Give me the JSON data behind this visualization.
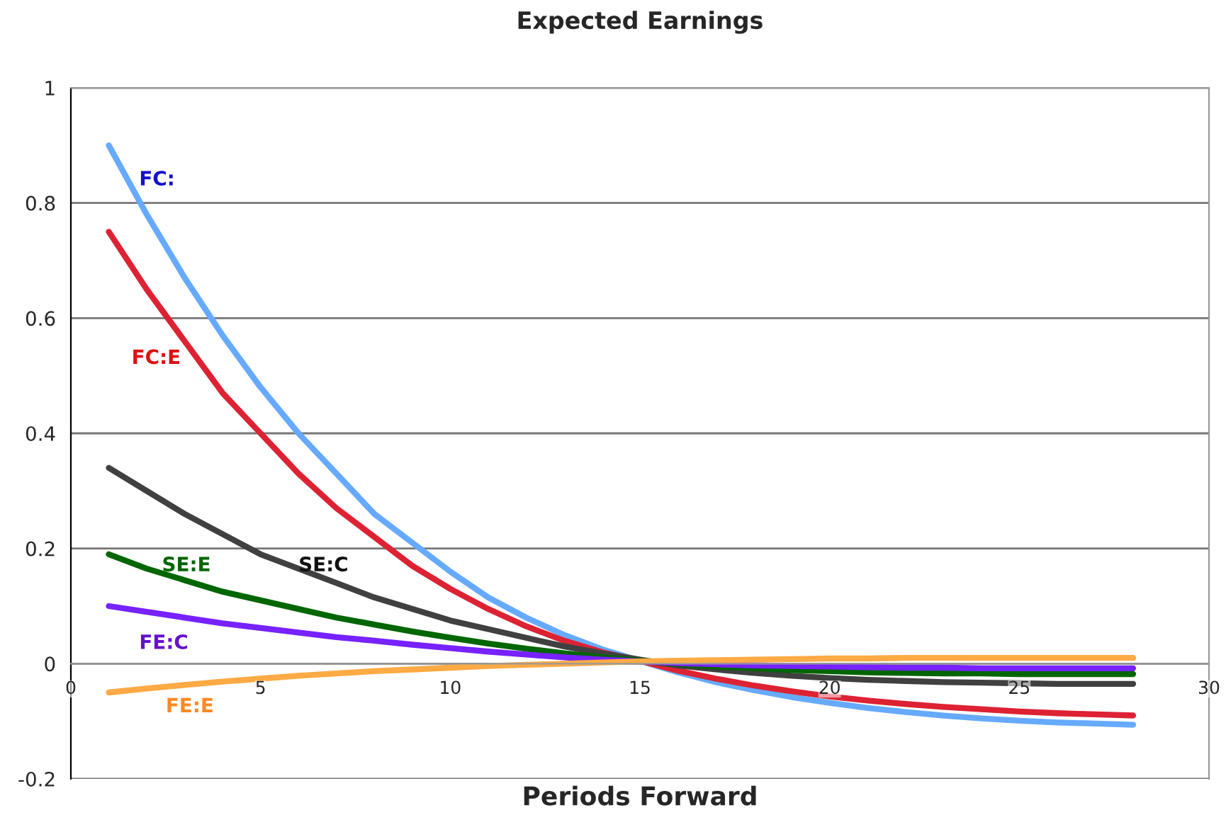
{
  "chart_data": {
    "type": "line",
    "title": "Expected Earnings",
    "xlabel": "Periods Forward",
    "x": [
      1,
      2,
      3,
      4,
      5,
      6,
      7,
      8,
      9,
      10,
      11,
      12,
      13,
      14,
      15,
      16,
      17,
      18,
      19,
      20,
      21,
      22,
      23,
      24,
      25,
      26,
      27,
      28
    ],
    "series": [
      {
        "name": "FC:",
        "color": "#66aaff",
        "values": [
          0.9,
          0.78,
          0.67,
          0.57,
          0.48,
          0.4,
          0.33,
          0.26,
          0.21,
          0.16,
          0.115,
          0.08,
          0.05,
          0.025,
          0.005,
          -0.015,
          -0.032,
          -0.046,
          -0.058,
          -0.068,
          -0.077,
          -0.084,
          -0.09,
          -0.095,
          -0.099,
          -0.102,
          -0.104,
          -0.106
        ]
      },
      {
        "name": "FC:E",
        "color": "#dd2233",
        "values": [
          0.75,
          0.65,
          0.56,
          0.47,
          0.4,
          0.33,
          0.27,
          0.22,
          0.17,
          0.13,
          0.095,
          0.065,
          0.04,
          0.02,
          0.005,
          -0.012,
          -0.026,
          -0.038,
          -0.048,
          -0.057,
          -0.064,
          -0.07,
          -0.075,
          -0.079,
          -0.083,
          -0.086,
          -0.088,
          -0.09
        ]
      },
      {
        "name": "SE:C",
        "color": "#404040",
        "values": [
          0.34,
          0.3,
          0.26,
          0.225,
          0.19,
          0.165,
          0.14,
          0.115,
          0.095,
          0.075,
          0.06,
          0.045,
          0.03,
          0.018,
          0.007,
          -0.003,
          -0.01,
          -0.016,
          -0.021,
          -0.025,
          -0.028,
          -0.03,
          -0.032,
          -0.033,
          -0.034,
          -0.035,
          -0.035,
          -0.035
        ]
      },
      {
        "name": "SE:E",
        "color": "#006600",
        "values": [
          0.19,
          0.165,
          0.145,
          0.125,
          0.11,
          0.095,
          0.08,
          0.068,
          0.056,
          0.045,
          0.035,
          0.026,
          0.018,
          0.011,
          0.005,
          -0.001,
          -0.005,
          -0.008,
          -0.011,
          -0.013,
          -0.015,
          -0.016,
          -0.017,
          -0.017,
          -0.018,
          -0.018,
          -0.018,
          -0.018
        ]
      },
      {
        "name": "FE:C",
        "color": "#7722ff",
        "values": [
          0.1,
          0.09,
          0.08,
          0.07,
          0.062,
          0.054,
          0.046,
          0.04,
          0.033,
          0.027,
          0.021,
          0.016,
          0.011,
          0.007,
          0.004,
          0.001,
          -0.001,
          -0.003,
          -0.004,
          -0.005,
          -0.006,
          -0.007,
          -0.007,
          -0.008,
          -0.008,
          -0.008,
          -0.008,
          -0.008
        ]
      },
      {
        "name": "FE:E",
        "color": "#ffaa44",
        "values": [
          -0.05,
          -0.043,
          -0.037,
          -0.031,
          -0.026,
          -0.021,
          -0.017,
          -0.013,
          -0.01,
          -0.007,
          -0.004,
          -0.002,
          0.0,
          0.002,
          0.004,
          0.005,
          0.006,
          0.007,
          0.008,
          0.009,
          0.009,
          0.01,
          0.01,
          0.01,
          0.01,
          0.01,
          0.01,
          0.01
        ]
      }
    ],
    "xlim": [
      0,
      30
    ],
    "xticks": [
      0,
      5,
      10,
      15,
      20,
      25,
      30
    ],
    "ylim": [
      -0.2,
      1
    ],
    "yticks": [
      -0.2,
      0,
      0.2,
      0.4,
      0.6,
      0.8,
      1
    ],
    "grid": "y",
    "legend": false,
    "marker": "none",
    "line_style": "solid"
  }
}
